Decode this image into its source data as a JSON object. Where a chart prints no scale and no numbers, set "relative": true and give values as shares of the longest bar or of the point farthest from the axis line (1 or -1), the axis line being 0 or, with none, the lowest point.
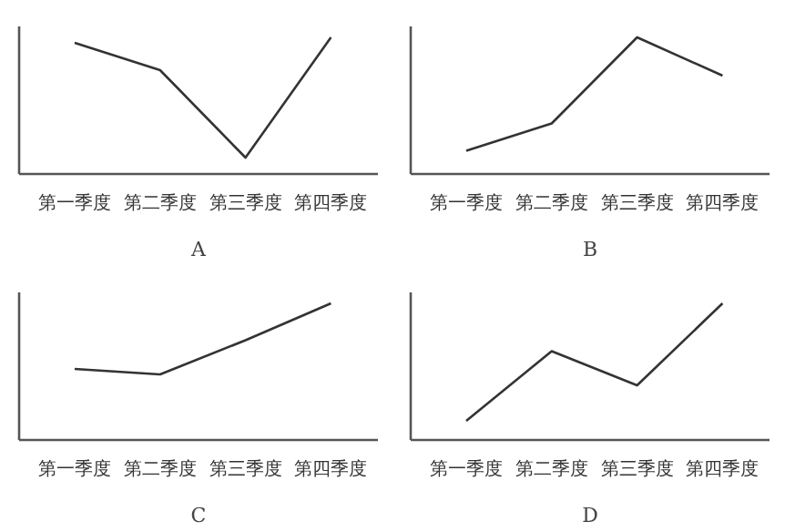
{
  "chart_data": [
    {
      "type": "line",
      "relative": true,
      "xlabel": "A",
      "categories": [
        "第一季度",
        "第二季度",
        "第三季度",
        "第四季度"
      ],
      "series": [
        {
          "color": "#333333",
          "values": [
            0.96,
            0.76,
            0.12,
            1
          ]
        }
      ],
      "grid": false,
      "marker": "none",
      "line_style": "solid"
    },
    {
      "type": "line",
      "relative": true,
      "xlabel": "B",
      "categories": [
        "第一季度",
        "第二季度",
        "第三季度",
        "第四季度"
      ],
      "series": [
        {
          "color": "#333333",
          "values": [
            0.17,
            0.37,
            1,
            0.72
          ]
        }
      ],
      "grid": false,
      "marker": "none",
      "line_style": "solid"
    },
    {
      "type": "line",
      "relative": true,
      "xlabel": "C",
      "categories": [
        "第一季度",
        "第二季度",
        "第三季度",
        "第四季度"
      ],
      "series": [
        {
          "color": "#333333",
          "values": [
            0.52,
            0.48,
            0.73,
            1
          ]
        }
      ],
      "grid": false,
      "marker": "none",
      "line_style": "solid"
    },
    {
      "type": "line",
      "relative": true,
      "xlabel": "D",
      "categories": [
        "第一季度",
        "第二季度",
        "第三季度",
        "第四季度"
      ],
      "series": [
        {
          "color": "#333333",
          "values": [
            0.14,
            0.65,
            0.4,
            1
          ]
        }
      ],
      "grid": false,
      "marker": "none",
      "line_style": "solid"
    }
  ]
}
